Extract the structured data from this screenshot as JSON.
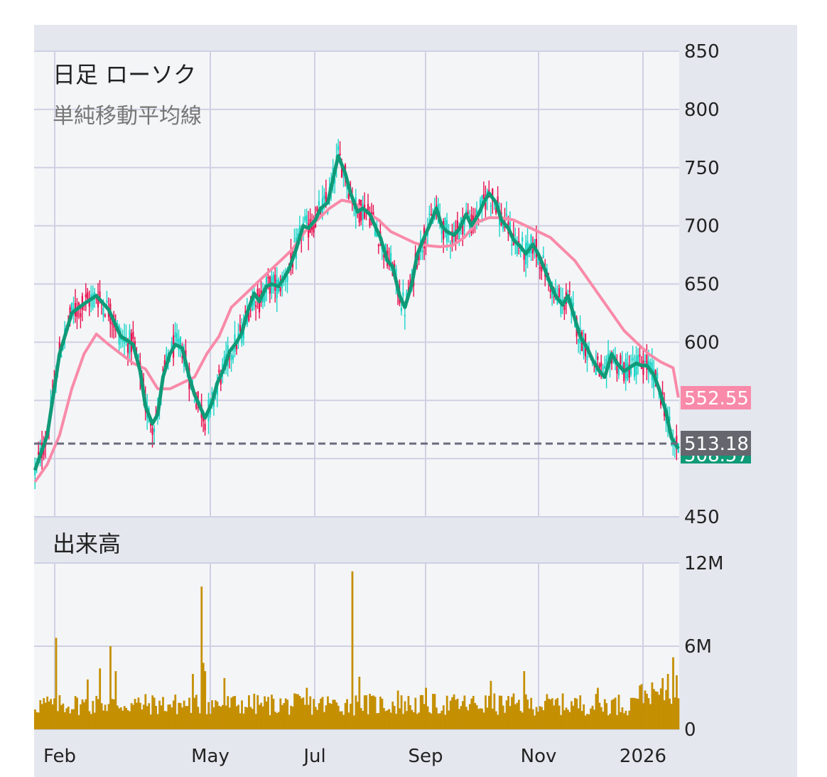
{
  "price_panel": {
    "title": "日足 ローソク",
    "subtitle": "単純移動平均線",
    "last_price_label": "513.18",
    "sma_long_label": "552.55",
    "sma_short_label": "508.57"
  },
  "volume_panel": {
    "title": "出来高"
  },
  "colors": {
    "up": "#e8114f",
    "down": "#1ad6c8",
    "sma_short": "#0f9a78",
    "sma_long": "#f98aa9",
    "volume": "#c48f00",
    "last_price_line": "#6b6b7e",
    "panel_bg": "#f4f5f7",
    "frame_bg": "#e4e7ee",
    "grid": "#cfd0e2"
  },
  "chart_data": [
    {
      "type": "candlestick",
      "title": "日足 ローソク",
      "subtitle": "単純移動平均線",
      "y_ticks": [
        "850",
        "800",
        "750",
        "700",
        "650",
        "600",
        "450"
      ],
      "ylim": [
        450,
        850
      ],
      "x_tick_labels": [
        "Feb",
        "May",
        "Jul",
        "Sep",
        "Nov",
        "2026"
      ],
      "last_price": 513.18,
      "series": [
        {
          "name": "sma_short",
          "points": [
            [
              0,
              490
            ],
            [
              7,
              520
            ],
            [
              14,
              590
            ],
            [
              21,
              625
            ],
            [
              28,
              633
            ],
            [
              35,
              640
            ],
            [
              42,
              628
            ],
            [
              49,
              605
            ],
            [
              56,
              598
            ],
            [
              60,
              575
            ],
            [
              63,
              545
            ],
            [
              67,
              530
            ],
            [
              70,
              538
            ],
            [
              73,
              570
            ],
            [
              77,
              590
            ],
            [
              80,
              598
            ],
            [
              84,
              595
            ],
            [
              88,
              570
            ],
            [
              91,
              555
            ],
            [
              94,
              545
            ],
            [
              97,
              535
            ],
            [
              101,
              548
            ],
            [
              104,
              565
            ],
            [
              108,
              578
            ],
            [
              111,
              592
            ],
            [
              115,
              600
            ],
            [
              118,
              608
            ],
            [
              121,
              625
            ],
            [
              125,
              642
            ],
            [
              128,
              635
            ],
            [
              132,
              648
            ],
            [
              135,
              650
            ],
            [
              139,
              648
            ],
            [
              142,
              655
            ],
            [
              145,
              663
            ],
            [
              149,
              680
            ],
            [
              153,
              700
            ],
            [
              156,
              698
            ],
            [
              160,
              705
            ],
            [
              163,
              715
            ],
            [
              167,
              720
            ],
            [
              170,
              740
            ],
            [
              173,
              760
            ],
            [
              177,
              745
            ],
            [
              180,
              728
            ],
            [
              184,
              712
            ],
            [
              187,
              715
            ],
            [
              191,
              710
            ],
            [
              194,
              700
            ],
            [
              197,
              690
            ],
            [
              201,
              670
            ],
            [
              204,
              665
            ],
            [
              208,
              640
            ],
            [
              211,
              630
            ],
            [
              215,
              650
            ],
            [
              218,
              675
            ],
            [
              222,
              690
            ],
            [
              225,
              700
            ],
            [
              229,
              715
            ],
            [
              232,
              700
            ],
            [
              235,
              695
            ],
            [
              239,
              692
            ],
            [
              242,
              697
            ],
            [
              246,
              710
            ],
            [
              249,
              700
            ],
            [
              253,
              710
            ],
            [
              256,
              720
            ],
            [
              259,
              728
            ],
            [
              263,
              720
            ],
            [
              266,
              705
            ],
            [
              270,
              698
            ],
            [
              273,
              688
            ],
            [
              277,
              682
            ],
            [
              280,
              676
            ],
            [
              284,
              684
            ],
            [
              287,
              676
            ],
            [
              291,
              662
            ],
            [
              294,
              650
            ],
            [
              297,
              640
            ],
            [
              301,
              632
            ],
            [
              304,
              640
            ],
            [
              308,
              620
            ],
            [
              311,
              605
            ],
            [
              315,
              595
            ],
            [
              318,
              585
            ],
            [
              322,
              575
            ],
            [
              325,
              570
            ],
            [
              329,
              590
            ],
            [
              332,
              582
            ],
            [
              336,
              575
            ],
            [
              339,
              578
            ],
            [
              343,
              582
            ],
            [
              346,
              580
            ],
            [
              349,
              580
            ],
            [
              353,
              572
            ],
            [
              356,
              560
            ],
            [
              360,
              540
            ],
            [
              363,
              518
            ],
            [
              367,
              508.57
            ]
          ]
        },
        {
          "name": "sma_long",
          "points": [
            [
              0,
              480
            ],
            [
              7,
              495
            ],
            [
              14,
              520
            ],
            [
              21,
              560
            ],
            [
              28,
              590
            ],
            [
              35,
              607
            ],
            [
              42,
              598
            ],
            [
              49,
              590
            ],
            [
              56,
              582
            ],
            [
              63,
              577
            ],
            [
              70,
              560
            ],
            [
              77,
              560
            ],
            [
              84,
              565
            ],
            [
              91,
              570
            ],
            [
              98,
              590
            ],
            [
              105,
              605
            ],
            [
              112,
              630
            ],
            [
              119,
              640
            ],
            [
              126,
              650
            ],
            [
              133,
              660
            ],
            [
              140,
              670
            ],
            [
              147,
              680
            ],
            [
              154,
              695
            ],
            [
              161,
              705
            ],
            [
              168,
              715
            ],
            [
              175,
              722
            ],
            [
              182,
              720
            ],
            [
              189,
              712
            ],
            [
              196,
              705
            ],
            [
              203,
              695
            ],
            [
              210,
              690
            ],
            [
              217,
              685
            ],
            [
              224,
              683
            ],
            [
              231,
              682
            ],
            [
              238,
              683
            ],
            [
              245,
              690
            ],
            [
              252,
              703
            ],
            [
              259,
              707
            ],
            [
              266,
              707
            ],
            [
              273,
              705
            ],
            [
              280,
              700
            ],
            [
              287,
              695
            ],
            [
              294,
              690
            ],
            [
              301,
              680
            ],
            [
              308,
              670
            ],
            [
              315,
              655
            ],
            [
              322,
              640
            ],
            [
              329,
              625
            ],
            [
              336,
              610
            ],
            [
              343,
              600
            ],
            [
              350,
              590
            ],
            [
              357,
              583
            ],
            [
              364,
              578
            ],
            [
              367,
              552.55
            ]
          ]
        }
      ]
    },
    {
      "type": "bar",
      "title": "出来高",
      "y_ticks": [
        "12M",
        "6M",
        "0"
      ],
      "ylim": [
        0,
        12000000
      ],
      "x_tick_labels": [
        "Feb",
        "May",
        "Jul",
        "Sep",
        "Nov",
        "2026"
      ]
    }
  ]
}
